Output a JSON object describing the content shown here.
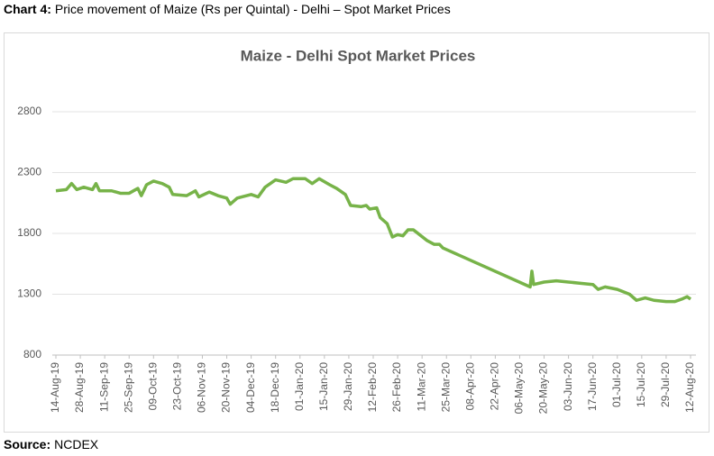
{
  "caption_label": "Chart 4:",
  "caption": "Price movement of Maize (Rs per Quintal) - Delhi – Spot Market Prices",
  "source_label": "Source:",
  "source": "NCDEX",
  "chart_data": {
    "type": "line",
    "title": "Maize - Delhi Spot Market Prices",
    "x": [
      "14-Aug-19",
      "20-Aug-19",
      "23-Aug-19",
      "26-Aug-19",
      "30-Aug-19",
      "04-Sep-19",
      "06-Sep-19",
      "08-Sep-19",
      "15-Sep-19",
      "20-Sep-19",
      "25-Sep-19",
      "30-Sep-19",
      "02-Oct-19",
      "05-Oct-19",
      "09-Oct-19",
      "14-Oct-19",
      "18-Oct-19",
      "20-Oct-19",
      "28-Oct-19",
      "02-Nov-19",
      "04-Nov-19",
      "10-Nov-19",
      "15-Nov-19",
      "20-Nov-19",
      "22-Nov-19",
      "26-Nov-19",
      "04-Dec-19",
      "08-Dec-19",
      "12-Dec-19",
      "18-Dec-19",
      "24-Dec-19",
      "28-Dec-19",
      "04-Jan-20",
      "08-Jan-20",
      "12-Jan-20",
      "18-Jan-20",
      "22-Jan-20",
      "27-Jan-20",
      "30-Jan-20",
      "05-Feb-20",
      "08-Feb-20",
      "10-Feb-20",
      "14-Feb-20",
      "16-Feb-20",
      "20-Feb-20",
      "23-Feb-20",
      "26-Feb-20",
      "29-Feb-20",
      "03-Mar-20",
      "06-Mar-20",
      "14-Mar-20",
      "18-Mar-20",
      "21-Mar-20",
      "23-Mar-20",
      "12-May-20",
      "13-May-20",
      "14-May-20",
      "20-May-20",
      "27-May-20",
      "03-Jun-20",
      "10-Jun-20",
      "17-Jun-20",
      "20-Jun-20",
      "24-Jun-20",
      "01-Jul-20",
      "08-Jul-20",
      "12-Jul-20",
      "17-Jul-20",
      "22-Jul-20",
      "29-Jul-20",
      "03-Aug-20",
      "07-Aug-20",
      "10-Aug-20",
      "12-Aug-20"
    ],
    "values": [
      2150,
      2160,
      2210,
      2160,
      2180,
      2160,
      2210,
      2150,
      2150,
      2130,
      2130,
      2170,
      2110,
      2200,
      2230,
      2210,
      2180,
      2120,
      2110,
      2150,
      2100,
      2140,
      2110,
      2090,
      2040,
      2090,
      2120,
      2100,
      2180,
      2240,
      2220,
      2250,
      2250,
      2210,
      2250,
      2200,
      2170,
      2120,
      2030,
      2020,
      2030,
      2000,
      2010,
      1930,
      1880,
      1770,
      1790,
      1780,
      1830,
      1830,
      1740,
      1710,
      1710,
      1680,
      1360,
      1490,
      1380,
      1400,
      1410,
      1400,
      1390,
      1380,
      1340,
      1360,
      1340,
      1300,
      1250,
      1270,
      1250,
      1240,
      1240,
      1260,
      1280,
      1260
    ],
    "color": "#77b349",
    "xlim": [
      "14-Aug-19",
      "12-Aug-20"
    ],
    "xticks": [
      "14-Aug-19",
      "28-Aug-19",
      "11-Sep-19",
      "25-Sep-19",
      "09-Oct-19",
      "23-Oct-19",
      "06-Nov-19",
      "20-Nov-19",
      "04-Dec-19",
      "18-Dec-19",
      "01-Jan-20",
      "15-Jan-20",
      "29-Jan-20",
      "12-Feb-20",
      "26-Feb-20",
      "11-Mar-20",
      "25-Mar-20",
      "08-Apr-20",
      "22-Apr-20",
      "06-May-20",
      "20-May-20",
      "03-Jun-20",
      "17-Jun-20",
      "01-Jul-20",
      "15-Jul-20",
      "29-Jul-20",
      "12-Aug-20"
    ],
    "ylim": [
      800,
      2800
    ],
    "yticks": [
      800,
      1300,
      1800,
      2300,
      2800
    ],
    "grid": true
  }
}
